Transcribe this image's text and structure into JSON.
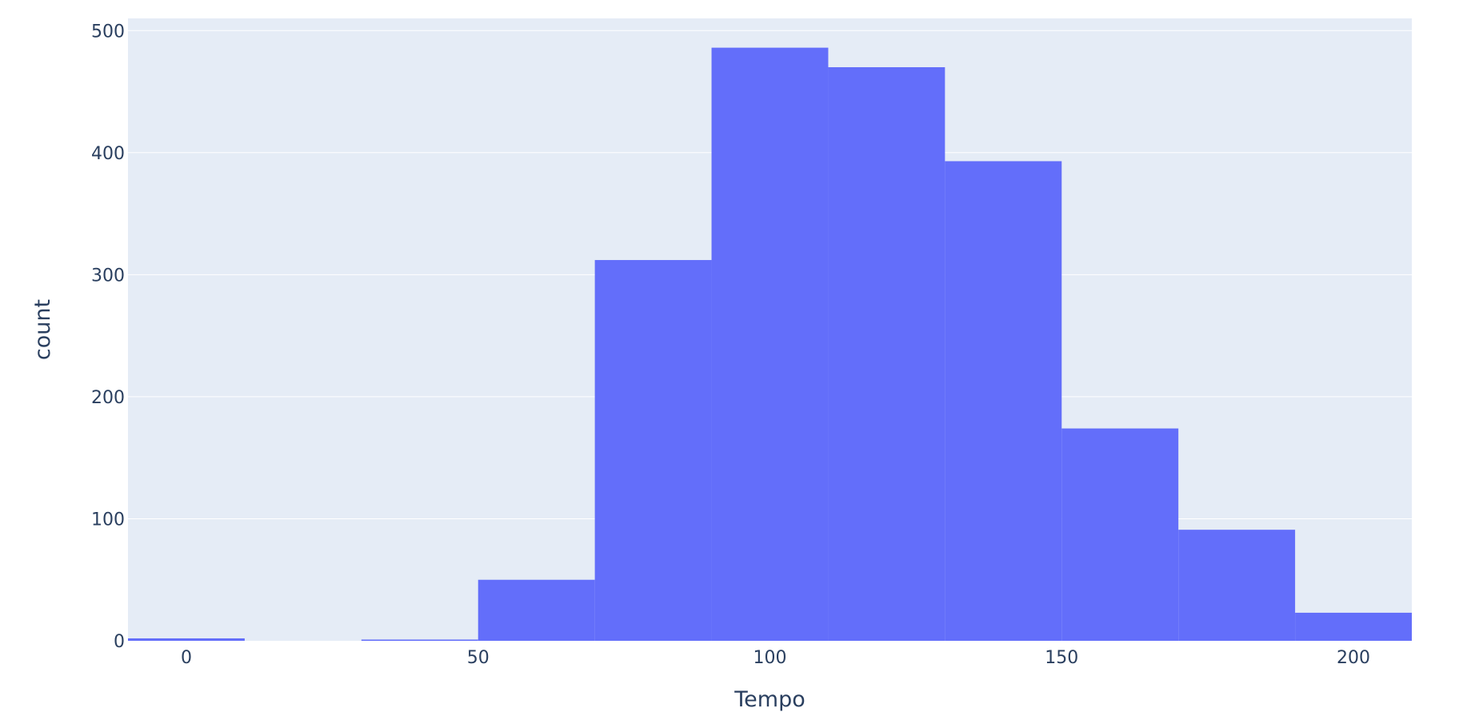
{
  "chart_data": {
    "type": "bar",
    "histogram": true,
    "xlabel": "Tempo",
    "ylabel": "count",
    "bin_width": 20,
    "bins": [
      {
        "start": -10,
        "end": 10,
        "count": 2
      },
      {
        "start": 10,
        "end": 30,
        "count": 0
      },
      {
        "start": 30,
        "end": 50,
        "count": 1
      },
      {
        "start": 50,
        "end": 70,
        "count": 50
      },
      {
        "start": 70,
        "end": 90,
        "count": 312
      },
      {
        "start": 90,
        "end": 110,
        "count": 486
      },
      {
        "start": 110,
        "end": 130,
        "count": 470
      },
      {
        "start": 130,
        "end": 150,
        "count": 393
      },
      {
        "start": 150,
        "end": 170,
        "count": 174
      },
      {
        "start": 170,
        "end": 190,
        "count": 91
      },
      {
        "start": 190,
        "end": 210,
        "count": 23
      }
    ],
    "xlim": [
      -10,
      210
    ],
    "ylim": [
      0,
      510
    ],
    "x_ticks": [
      0,
      50,
      100,
      150,
      200
    ],
    "y_ticks": [
      0,
      100,
      200,
      300,
      400,
      500
    ],
    "grid": true,
    "colors": {
      "bar": "#636efa",
      "plot_background": "#e5ecf6",
      "grid": "#ffffff",
      "text": "#2a3f5f"
    }
  }
}
